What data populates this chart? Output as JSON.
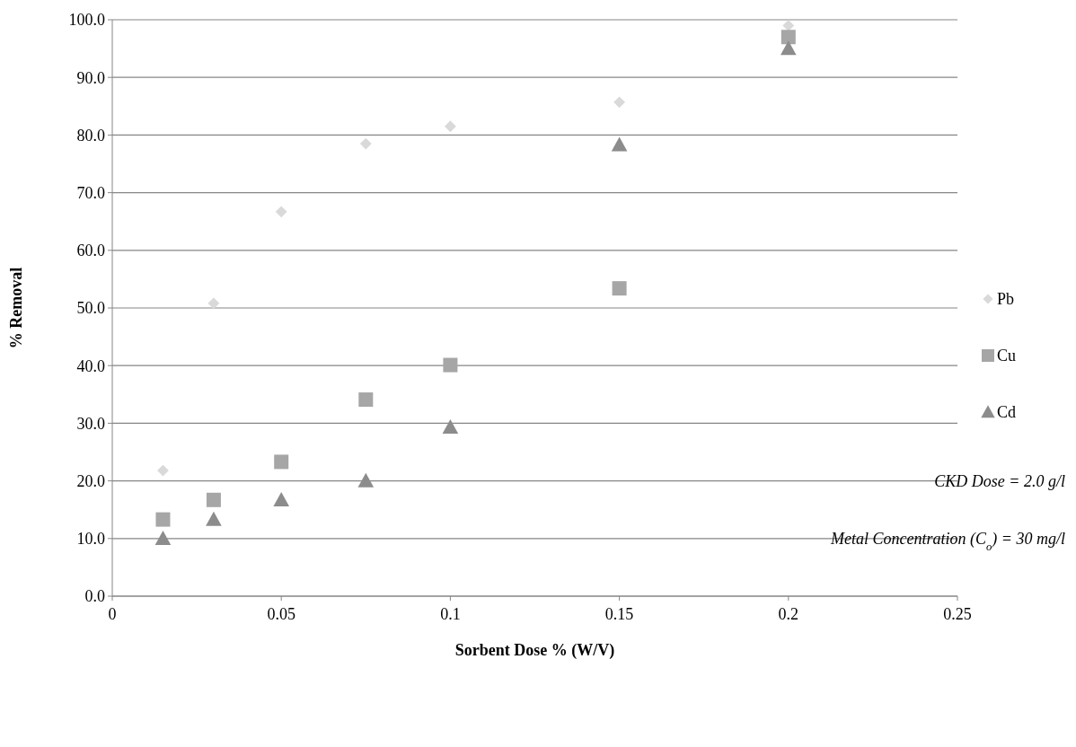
{
  "chart_data": {
    "type": "scatter",
    "xlabel": "Sorbent Dose % (W/V)",
    "ylabel": "% Removal",
    "x": [
      0.015,
      0.03,
      0.05,
      0.075,
      0.1,
      0.15,
      0.2
    ],
    "series": [
      {
        "name": "Pb",
        "color": "#d9d9d9",
        "marker": "diamond",
        "values": [
          21.8,
          50.8,
          66.7,
          78.5,
          81.5,
          85.7,
          99.0
        ]
      },
      {
        "name": "Cu",
        "color": "#a6a6a6",
        "marker": "square",
        "values": [
          13.3,
          16.7,
          23.3,
          34.1,
          40.1,
          53.4,
          97.0
        ]
      },
      {
        "name": "Cd",
        "color": "#8c8c8c",
        "marker": "triangle",
        "values": [
          10.0,
          13.3,
          16.7,
          20.0,
          29.3,
          78.3,
          95.0
        ]
      }
    ],
    "xlim": [
      0,
      0.25
    ],
    "xticks": [
      0,
      0.05,
      0.1,
      0.15,
      0.2,
      0.25
    ],
    "ylim": [
      0,
      100
    ],
    "yticks": [
      {
        "value": 0,
        "label": "0.0"
      },
      {
        "value": 10,
        "label": "10.0"
      },
      {
        "value": 20,
        "label": "20.0"
      },
      {
        "value": 30,
        "label": "30.0"
      },
      {
        "value": 40,
        "label": "40.0"
      },
      {
        "value": 50,
        "label": "50.0"
      },
      {
        "value": 60,
        "label": "60.0"
      },
      {
        "value": 70,
        "label": "70.0"
      },
      {
        "value": 80,
        "label": "80.0"
      },
      {
        "value": 90,
        "label": "90.0"
      },
      {
        "value": 100,
        "label": "100.0"
      }
    ],
    "grid": "y",
    "legend": "right",
    "annotations": [
      "CKD Dose = 2.0 g/l",
      "Metal Concentration (C$_{o}$) = 30 mg/l"
    ]
  }
}
